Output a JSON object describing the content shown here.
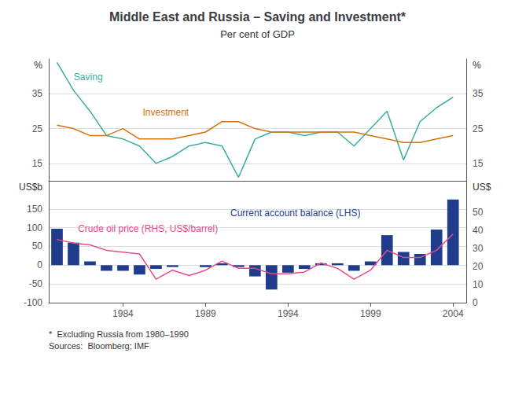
{
  "chart_data": [
    {
      "type": "line",
      "title": "Middle East and Russia – Saving and Investment*",
      "subtitle": "Per cent of GDP",
      "x": [
        1980,
        1981,
        1982,
        1983,
        1984,
        1985,
        1986,
        1987,
        1988,
        1989,
        1990,
        1991,
        1992,
        1993,
        1994,
        1995,
        1996,
        1997,
        1998,
        1999,
        2000,
        2001,
        2002,
        2003,
        2004
      ],
      "xlim": [
        1979.5,
        2004.8
      ],
      "xticks": [],
      "tick_labels": "y",
      "ylabel": "%",
      "ylim": [
        10,
        45
      ],
      "yticks": [
        15,
        25,
        35
      ],
      "y2label": "%",
      "y2lim": [
        10,
        45
      ],
      "y2ticks": [
        15,
        25,
        35
      ],
      "grid": true,
      "series": [
        {
          "name": "Saving",
          "color": "#3aada0",
          "values": [
            44,
            36,
            30,
            23,
            22,
            20,
            15,
            17,
            20,
            21,
            20,
            11,
            22,
            24,
            24,
            23,
            24,
            24,
            20,
            25,
            30,
            16,
            27,
            31,
            34
          ]
        },
        {
          "name": "Investment",
          "color": "#d4720c",
          "values": [
            26,
            25,
            23,
            23,
            25,
            22,
            22,
            22,
            23,
            24,
            27,
            27,
            25,
            24,
            24,
            24,
            24,
            24,
            24,
            23,
            22,
            21,
            21,
            22,
            23
          ]
        }
      ]
    },
    {
      "type": "bar",
      "x": [
        1980,
        1981,
        1982,
        1983,
        1984,
        1985,
        1986,
        1987,
        1988,
        1989,
        1990,
        1991,
        1992,
        1993,
        1994,
        1995,
        1996,
        1997,
        1998,
        1999,
        2000,
        2001,
        2002,
        2003,
        2004
      ],
      "xlim": [
        1979.5,
        2004.8
      ],
      "xticks": [
        1984,
        1989,
        1994,
        1999,
        2004
      ],
      "ylabel": "US$b",
      "ylim": [
        -100,
        225
      ],
      "yticks": [
        -100,
        -50,
        0,
        50,
        100,
        150
      ],
      "y2label": "US$",
      "y2lim": [
        0,
        67.5
      ],
      "y2ticks": [
        0,
        10,
        20,
        30,
        40,
        50
      ],
      "grid": true,
      "series": [
        {
          "name": "Current account balance (LHS)",
          "type": "bar",
          "color": "#1f3d8c",
          "values": [
            97,
            60,
            10,
            -15,
            -15,
            -25,
            -10,
            -5,
            0,
            -5,
            5,
            -5,
            -30,
            -65,
            -20,
            -10,
            5,
            5,
            -15,
            10,
            80,
            35,
            30,
            95,
            175
          ]
        },
        {
          "name": "Crude oil price (RHS, US$/barrel)",
          "type": "line",
          "axis": "y2",
          "color": "#e84b8a",
          "values": [
            35,
            33,
            32,
            29,
            28,
            27,
            13,
            18,
            15,
            18,
            23,
            19,
            19,
            16,
            16,
            17,
            22,
            19,
            13,
            18,
            29,
            25,
            25,
            29,
            38
          ]
        }
      ],
      "footnote": "*  Excluding Russia from 1980–1990\nSources:  Bloomberg; IMF"
    }
  ]
}
